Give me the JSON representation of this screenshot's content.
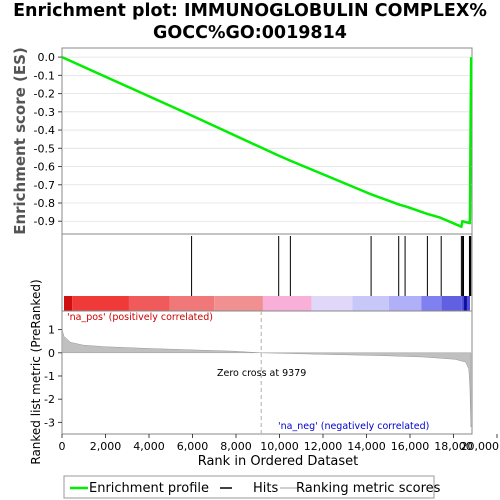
{
  "title_line1": "Enrichment plot: IMMUNOGLOBULIN COMPLEX%",
  "title_line2": "GOCC%GO:0019814",
  "chart_data": [
    {
      "type": "line",
      "ylabel": "Enrichment score (ES)",
      "ylim": [
        -0.97,
        0.05
      ],
      "yticks": [
        0.0,
        -0.1,
        -0.2,
        -0.3,
        -0.4,
        -0.5,
        -0.6,
        -0.7,
        -0.8,
        -0.9
      ],
      "ytick_labels": [
        "0.0",
        "-0.1",
        "-0.2",
        "-0.3",
        "-0.4",
        "-0.5",
        "-0.6",
        "-0.7",
        "-0.8",
        "-0.9"
      ],
      "xlim": [
        0,
        19300
      ],
      "series": [
        {
          "name": "Enrichment profile",
          "color": "#00ee00",
          "x": [
            0,
            6100,
            10200,
            10800,
            14500,
            15900,
            16200,
            17200,
            17800,
            18800,
            18850,
            19000,
            19200,
            19210,
            19220,
            19240,
            19260
          ],
          "y": [
            0.0,
            -0.32,
            -0.54,
            -0.57,
            -0.75,
            -0.81,
            -0.82,
            -0.86,
            -0.88,
            -0.93,
            -0.9,
            -0.905,
            -0.91,
            -0.8,
            -0.6,
            -0.3,
            0.0
          ]
        }
      ]
    },
    {
      "type": "hits",
      "series_name": "Hits",
      "positions": [
        6100,
        10200,
        10750,
        14550,
        15850,
        16150,
        17200,
        17850,
        18800,
        18850,
        18900,
        19180,
        19200,
        19220,
        19240
      ]
    },
    {
      "type": "area",
      "ylabel": "Ranked list metric (PreRanked)",
      "xlabel": "Rank in Ordered Dataset",
      "ylim": [
        -3.5,
        1.8
      ],
      "yticks": [
        1,
        0,
        -1,
        -2,
        -3
      ],
      "ytick_labels": [
        "1",
        "0",
        "-1",
        "-2",
        "-3"
      ],
      "xlim": [
        0,
        20000
      ],
      "xticks": [
        0,
        2000,
        4000,
        6000,
        8000,
        10000,
        12000,
        14000,
        16000,
        18000,
        20000
      ],
      "xtick_labels": [
        "0",
        "2,000",
        "4,000",
        "6,000",
        "8,000",
        "10,000",
        "12,000",
        "14,000",
        "16,000",
        "18,000",
        "20,000"
      ],
      "series": [
        {
          "name": "Ranking metric scores",
          "color": "#c0c0c0",
          "x": [
            0,
            100,
            400,
            1000,
            2000,
            4000,
            6000,
            8000,
            9379,
            12000,
            15000,
            17000,
            18500,
            19000,
            19150,
            19200,
            19250
          ],
          "y": [
            1.0,
            0.7,
            0.45,
            0.33,
            0.26,
            0.19,
            0.13,
            0.07,
            0.0,
            -0.06,
            -0.12,
            -0.18,
            -0.28,
            -0.4,
            -0.7,
            -1.5,
            -3.2
          ]
        }
      ],
      "zero_cross": 9379
    }
  ],
  "heatmap_colors": [
    "#d01010",
    "#f03a3a",
    "#f05a5a",
    "#f07878",
    "#f09090",
    "#f8b0d8",
    "#e0d8f8",
    "#c8c8f8",
    "#b0b0f8",
    "#8080f0",
    "#6060e0",
    "#5050dd",
    "#1010a0"
  ],
  "annotations": {
    "pos_label": "'na_pos' (positively correlated)",
    "neg_label": "'na_neg' (negatively correlated)",
    "zero_cross_label": "Zero cross at 9379",
    "pos_color": "#cc0000",
    "neg_color": "#0000cc"
  },
  "legend": {
    "items": [
      {
        "label": "Enrichment profile",
        "color": "#00ee00"
      },
      {
        "label": "Hits",
        "color": "#000000"
      },
      {
        "label": "Ranking metric scores",
        "color": "#c0c0c0"
      }
    ]
  }
}
